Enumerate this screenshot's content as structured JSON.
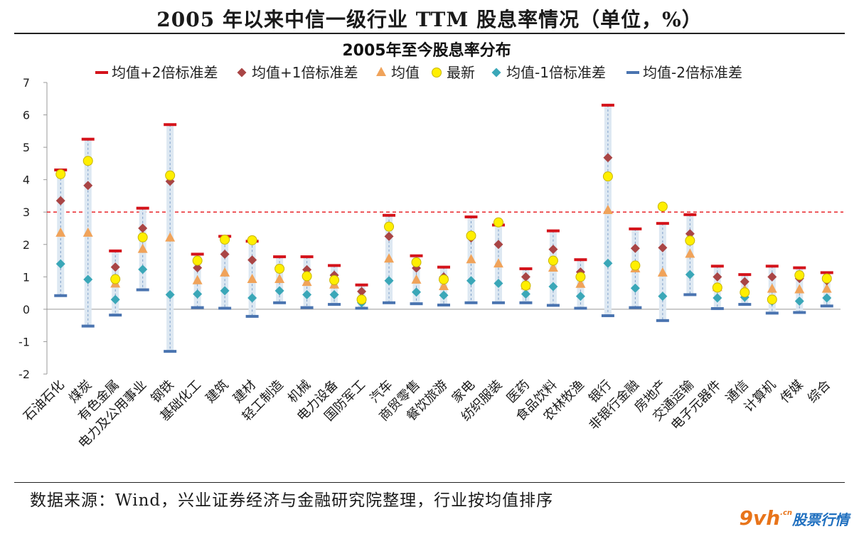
{
  "page_title": "2005 年以来中信一级行业 TTM 股息率情况（单位，%）",
  "footnote": "数据来源：Wind，兴业证券经济与金融研究院整理，行业按均值排序",
  "watermark": {
    "logo": "9vh",
    "domain": ".cn",
    "text": "股票行情"
  },
  "colors": {
    "plus2": "#d4131b",
    "plus1": "#a94545",
    "mean": "#f0a35a",
    "latest": "#ffef00",
    "latest_edge": "#c8b400",
    "minus1": "#3aa7b8",
    "minus2": "#4a74b0",
    "band": "#dde8f2",
    "reference": "#e8262b"
  },
  "chart_data": {
    "type": "scatter",
    "title": "2005年至今股息率分布",
    "ylim": [
      -2,
      7
    ],
    "yticks": [
      -2,
      -1,
      0,
      1,
      2,
      3,
      4,
      5,
      6,
      7
    ],
    "reference_line": 3.0,
    "legend_position": "top",
    "categories": [
      "石油石化",
      "煤炭",
      "有色金属",
      "电力及公用事业",
      "钢铁",
      "基础化工",
      "建筑",
      "建材",
      "轻工制造",
      "机械",
      "电力设备",
      "国防军工",
      "汽车",
      "商贸零售",
      "餐饮旅游",
      "家电",
      "纺织服装",
      "医药",
      "食品饮料",
      "农林牧渔",
      "银行",
      "非银行金融",
      "房地产",
      "交通运输",
      "电子元器件",
      "通信",
      "计算机",
      "传媒",
      "综合"
    ],
    "series": [
      {
        "key": "plus2",
        "name": "均值+2倍标准差",
        "marker": "dash",
        "values": [
          4.3,
          5.25,
          1.8,
          3.12,
          5.7,
          1.7,
          2.25,
          2.1,
          1.62,
          1.62,
          1.35,
          0.75,
          2.9,
          1.65,
          1.3,
          2.85,
          2.6,
          1.25,
          2.42,
          1.53,
          6.3,
          2.48,
          2.65,
          2.92,
          1.33,
          1.07,
          1.33,
          1.28,
          1.13
        ]
      },
      {
        "key": "plus1",
        "name": "均值+1倍标准差",
        "marker": "diamond",
        "values": [
          3.35,
          3.82,
          1.3,
          2.5,
          3.95,
          1.28,
          1.7,
          1.52,
          1.25,
          1.22,
          1.05,
          0.55,
          2.25,
          1.27,
          1.0,
          2.2,
          2.0,
          1.0,
          1.85,
          1.15,
          4.68,
          1.88,
          1.9,
          2.33,
          1.0,
          0.85,
          1.0,
          0.95,
          0.88
        ]
      },
      {
        "key": "mean",
        "name": "均值",
        "marker": "triangle",
        "values": [
          2.35,
          2.35,
          0.78,
          1.85,
          2.2,
          0.88,
          1.12,
          0.92,
          0.92,
          0.83,
          0.75,
          0.38,
          1.55,
          0.9,
          0.7,
          1.53,
          1.4,
          0.72,
          1.27,
          0.77,
          3.05,
          1.25,
          1.12,
          1.7,
          0.67,
          0.6,
          0.62,
          0.6,
          0.62
        ]
      },
      {
        "key": "latest",
        "name": "最新",
        "marker": "circle",
        "values": [
          4.17,
          4.58,
          0.93,
          2.22,
          4.13,
          1.5,
          2.15,
          2.13,
          1.25,
          1.02,
          0.9,
          0.3,
          2.55,
          1.45,
          0.92,
          2.27,
          2.68,
          0.73,
          1.5,
          1.0,
          4.1,
          1.35,
          3.17,
          2.12,
          0.67,
          0.52,
          0.3,
          1.05,
          0.95
        ]
      },
      {
        "key": "minus1",
        "name": "均值-1倍标准差",
        "marker": "diamond",
        "values": [
          1.4,
          0.92,
          0.3,
          1.23,
          0.45,
          0.47,
          0.57,
          0.35,
          0.57,
          0.45,
          0.45,
          0.2,
          0.88,
          0.53,
          0.43,
          0.88,
          0.8,
          0.47,
          0.7,
          0.4,
          1.42,
          0.65,
          0.4,
          1.07,
          0.35,
          0.37,
          0.25,
          0.25,
          0.35
        ]
      },
      {
        "key": "minus2",
        "name": "均值-2倍标准差",
        "marker": "dash",
        "values": [
          0.42,
          -0.52,
          -0.18,
          0.6,
          -1.3,
          0.05,
          0.03,
          -0.22,
          0.2,
          0.05,
          0.15,
          0.03,
          0.2,
          0.17,
          0.13,
          0.2,
          0.2,
          0.2,
          0.12,
          0.03,
          -0.2,
          0.05,
          -0.35,
          0.45,
          0.02,
          0.15,
          -0.12,
          -0.1,
          0.1
        ]
      }
    ]
  }
}
